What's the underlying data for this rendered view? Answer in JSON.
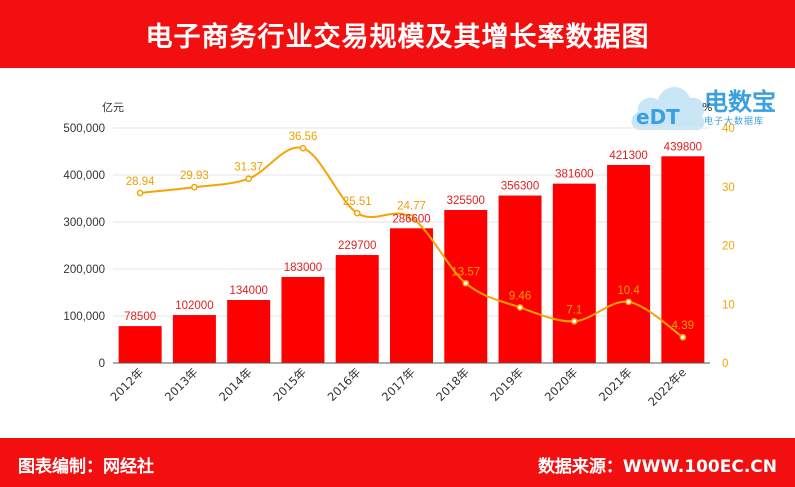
{
  "header": {
    "title": "电子商务行业交易规模及其增长率数据图"
  },
  "footer": {
    "left": "图表编制：网经社",
    "right": "数据来源：WWW.100EC.CN"
  },
  "logo": {
    "text": "eDT",
    "brand": "电数宝",
    "subtitle": "电子大数据库"
  },
  "colors": {
    "header_bg": "#f30f0f",
    "bar": "#fe0000",
    "line": "#f7a307",
    "bar_label": "#e02020",
    "line_label": "#f0a000"
  },
  "chart_data": {
    "type": "bar",
    "categories": [
      "2012年",
      "2013年",
      "2014年",
      "2015年",
      "2016年",
      "2017年",
      "2018年",
      "2019年",
      "2020年",
      "2021年",
      "2022年e"
    ],
    "series": [
      {
        "type": "bar",
        "axis": "left",
        "values": [
          78500,
          102000,
          134000,
          183000,
          229700,
          286600,
          325500,
          356300,
          381600,
          421300,
          439800
        ]
      },
      {
        "type": "line",
        "axis": "right",
        "smooth": true,
        "values": [
          28.94,
          29.93,
          31.37,
          36.56,
          25.51,
          24.77,
          13.57,
          9.46,
          7.1,
          10.4,
          4.39
        ]
      }
    ],
    "bar_labels": [
      "78500",
      "102000",
      "134000",
      "183000",
      "229700",
      "286600",
      "325500",
      "356300",
      "381600",
      "421300",
      "439800"
    ],
    "line_labels": [
      "28.94",
      "29.93",
      "31.37",
      "36.56",
      "25.51",
      "24.77",
      "13.57",
      "9.46",
      "7.1",
      "10.4",
      "4.39"
    ],
    "ylabel_left": "亿元",
    "ylabel_right": "%",
    "ylim_left": [
      0,
      500000
    ],
    "ylim_right": [
      0,
      40
    ],
    "left_ticks": [
      "0",
      "100,000",
      "200,000",
      "300,000",
      "400,000",
      "500,000"
    ],
    "left_tick_values": [
      0,
      100000,
      200000,
      300000,
      400000,
      500000
    ],
    "right_ticks": [
      "0",
      "10",
      "20",
      "30",
      "40"
    ],
    "right_tick_values": [
      0,
      10,
      20,
      30,
      40
    ],
    "grid": true,
    "legend": "none"
  }
}
